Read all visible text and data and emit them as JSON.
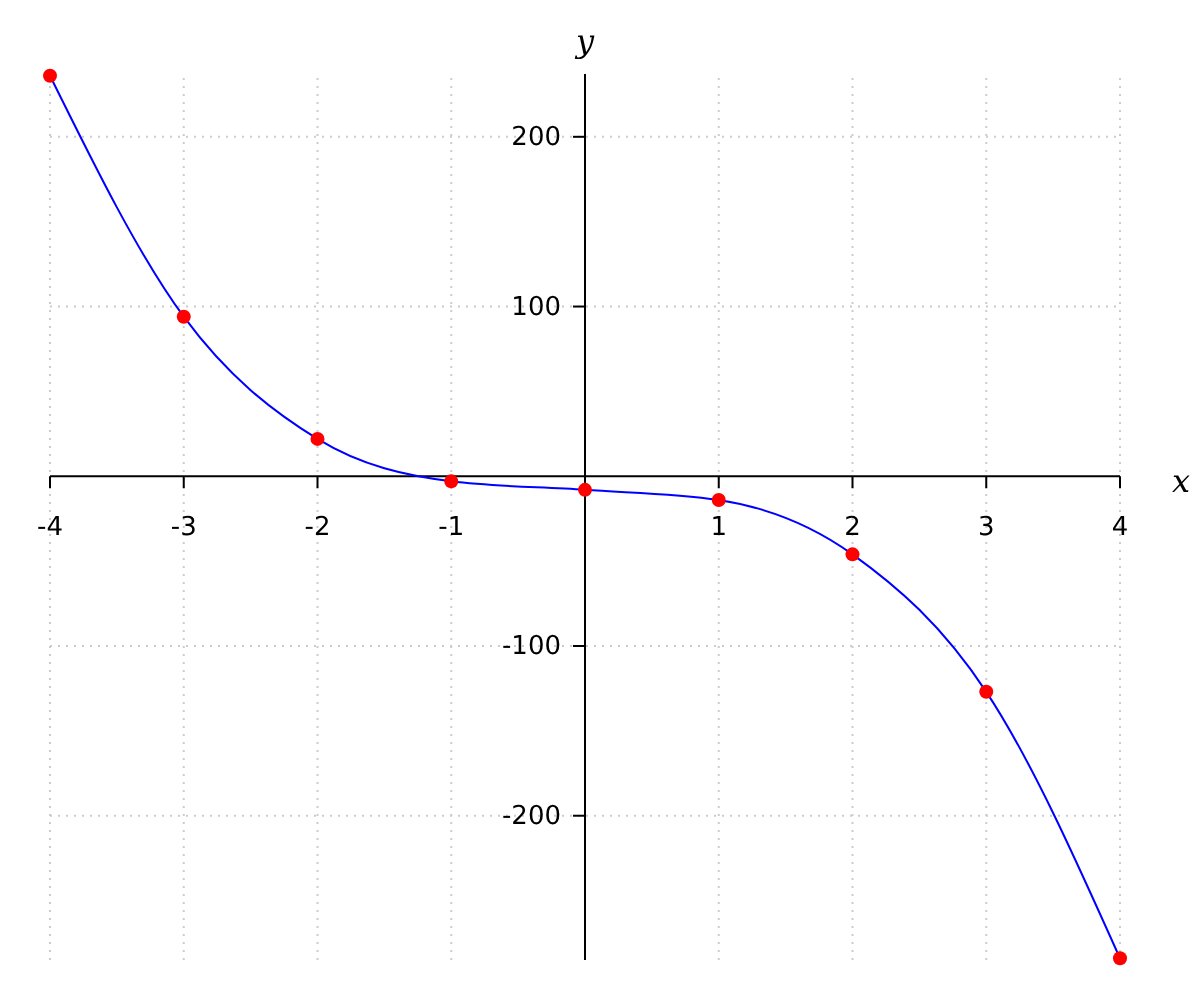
{
  "chart_data": {
    "type": "line",
    "xlabel": "x",
    "ylabel": "y",
    "x": [
      -4,
      -3,
      -2,
      -1,
      0,
      1,
      2,
      3,
      4
    ],
    "series": [
      {
        "color": "#0000ff",
        "marker": "none",
        "values": [
          236,
          94,
          22,
          -3,
          -8,
          -14,
          -46,
          -127,
          -284
        ]
      },
      {
        "type": "scatter",
        "color": "#ff0000",
        "marker": "circle",
        "values": [
          236,
          94,
          22,
          -3,
          -8,
          -14,
          -46,
          -127,
          -284
        ]
      }
    ],
    "xlim": [
      -4,
      4
    ],
    "ylim": [
      -285,
      237
    ],
    "xticks": [
      -4,
      -3,
      -2,
      -1,
      1,
      2,
      3,
      4
    ],
    "yticks": [
      -200,
      -100,
      100,
      200
    ],
    "grid": true
  }
}
